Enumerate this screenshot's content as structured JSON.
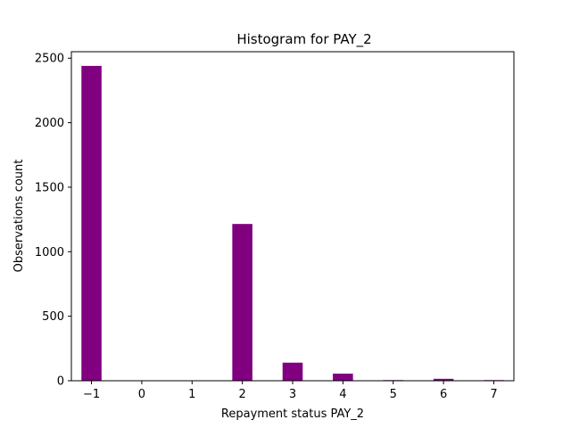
{
  "chart_data": {
    "type": "bar",
    "title": "Histogram for PAY_2",
    "xlabel": "Repayment status PAY_2",
    "ylabel": "Observations count",
    "bar_color": "#800080",
    "xlim": [
      -1.4,
      7.4
    ],
    "ylim": [
      0,
      2550
    ],
    "bin_width": 0.4,
    "xticks": [
      -1,
      0,
      1,
      2,
      3,
      4,
      5,
      6,
      7
    ],
    "xtick_labels": [
      "−1",
      "0",
      "1",
      "2",
      "3",
      "4",
      "5",
      "6",
      "7"
    ],
    "yticks": [
      0,
      500,
      1000,
      1500,
      2000,
      2500
    ],
    "ytick_labels": [
      "0",
      "500",
      "1000",
      "1500",
      "2000",
      "2500"
    ],
    "bars": [
      {
        "x": -1.0,
        "value": 2440
      },
      {
        "x": 2.0,
        "value": 1215
      },
      {
        "x": 3.0,
        "value": 140
      },
      {
        "x": 4.0,
        "value": 55
      },
      {
        "x": 5.0,
        "value": 5
      },
      {
        "x": 6.0,
        "value": 15
      },
      {
        "x": 7.0,
        "value": 5
      }
    ],
    "grid": false,
    "legend": "none"
  }
}
